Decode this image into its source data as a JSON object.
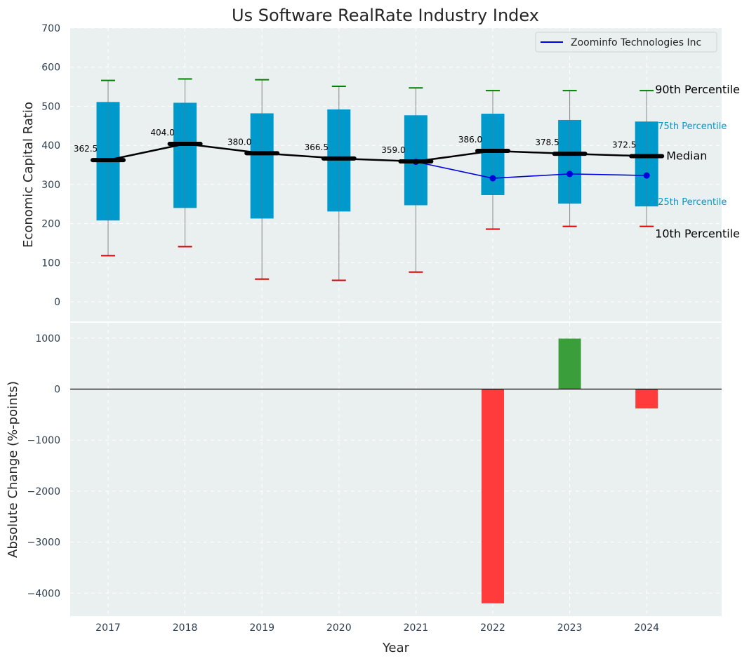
{
  "chart_data": [
    {
      "type": "box",
      "title": "Us Software RealRate Industry Index",
      "ylabel": "Economic Capital Ratio",
      "ylim": [
        -50,
        700
      ],
      "yticks": [
        0,
        100,
        200,
        300,
        400,
        500,
        600,
        700
      ],
      "categories": [
        "2017",
        "2018",
        "2019",
        "2020",
        "2021",
        "2022",
        "2023",
        "2024"
      ],
      "p10": [
        118,
        141,
        58,
        55,
        76,
        186,
        193,
        193
      ],
      "p25": [
        208,
        240,
        213,
        231,
        247,
        273,
        251,
        244
      ],
      "median": [
        362.5,
        404.0,
        380.0,
        366.5,
        359.0,
        386.0,
        378.5,
        372.5
      ],
      "median_labels": [
        "362.5",
        "404.0",
        "380.0",
        "366.5",
        "359.0",
        "386.0",
        "378.5",
        "372.5"
      ],
      "p75": [
        511,
        509,
        482,
        492,
        477,
        481,
        465,
        461
      ],
      "p90": [
        566,
        570,
        568,
        551,
        547,
        540,
        540,
        540
      ],
      "company": {
        "name": "Zoominfo Technologies Inc",
        "x": [
          "2021",
          "2022",
          "2023",
          "2024"
        ],
        "values": [
          358,
          316,
          327,
          323
        ]
      },
      "legend": {
        "position": "top-right",
        "entries": [
          "Zoominfo Technologies Inc"
        ]
      },
      "annotations": {
        "p90": "90th Percentile",
        "p75": "75th Percentile",
        "median": "Median",
        "p25": "25th Percentile",
        "p10": "10th Percentile"
      }
    },
    {
      "type": "bar",
      "xlabel": "Year",
      "ylabel": "Absolute Change (%-points)",
      "ylim": [
        -4450,
        1300
      ],
      "yticks": [
        1000,
        0,
        -1000,
        -2000,
        -3000,
        -4000
      ],
      "ytick_labels": [
        "1000",
        "0",
        "−1000",
        "−2000",
        "−3000",
        "−4000"
      ],
      "categories": [
        "2017",
        "2018",
        "2019",
        "2020",
        "2021",
        "2022",
        "2023",
        "2024"
      ],
      "values": [
        null,
        null,
        null,
        null,
        null,
        -4200,
        990,
        -380
      ]
    }
  ],
  "colors": {
    "box": "#0099cc",
    "median": "#000000",
    "company": "#0000dd",
    "p90_cap": "#008000",
    "p10_cap": "#dd0000",
    "positive": "#3a9e3a",
    "negative": "#ff3b3b",
    "panel": "#eaeff0"
  }
}
